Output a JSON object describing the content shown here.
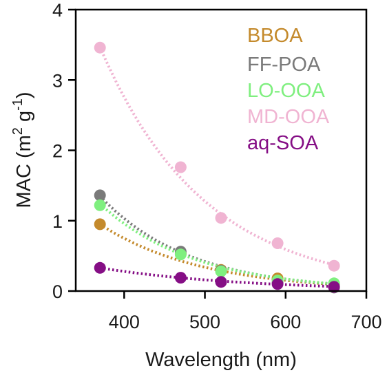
{
  "chart_data": {
    "type": "scatter",
    "title": "",
    "xlabel": "Wavelength (nm)",
    "ylabel": {
      "base": "MAC (m",
      "sup1": "2",
      "mid": " g",
      "sup2": "-1",
      "end": ")"
    },
    "xlim": [
      340,
      700
    ],
    "ylim": [
      0,
      4
    ],
    "x_ticks": [
      400,
      500,
      600,
      700
    ],
    "x_tick_labels": [
      "400",
      "500",
      "600",
      "700"
    ],
    "y_ticks": [
      0,
      1,
      2,
      3,
      4
    ],
    "y_tick_labels": [
      "0",
      "1",
      "2",
      "3",
      "4"
    ],
    "grid": false,
    "legend_position": "top-right",
    "x": [
      370,
      470,
      520,
      590,
      660
    ],
    "series": [
      {
        "name": "BBOA",
        "color": "#c48a2c",
        "values": [
          0.95,
          0.53,
          0.3,
          0.18,
          0.1
        ],
        "fit": {
          "a": 0.95,
          "k": 0.00794
        }
      },
      {
        "name": "FF-POA",
        "color": "#7a7a7a",
        "values": [
          1.36,
          0.56,
          0.29,
          0.12,
          0.05
        ],
        "fit": {
          "a": 1.35,
          "k": 0.00899
        }
      },
      {
        "name": "LO-OOA",
        "color": "#7fef7f",
        "values": [
          1.22,
          0.52,
          0.28,
          0.15,
          0.11
        ],
        "fit": {
          "a": 1.24,
          "k": 0.00858
        }
      },
      {
        "name": "MD-OOA",
        "color": "#f0b4d2",
        "values": [
          3.46,
          1.76,
          1.04,
          0.68,
          0.36
        ],
        "fit": {
          "a": 3.47,
          "k": 0.00769
        }
      },
      {
        "name": "aq-SOA",
        "color": "#850e85",
        "values": [
          0.33,
          0.19,
          0.13,
          0.1,
          0.06
        ],
        "fit": {
          "a": 0.33,
          "k": 0.0056
        }
      }
    ]
  }
}
